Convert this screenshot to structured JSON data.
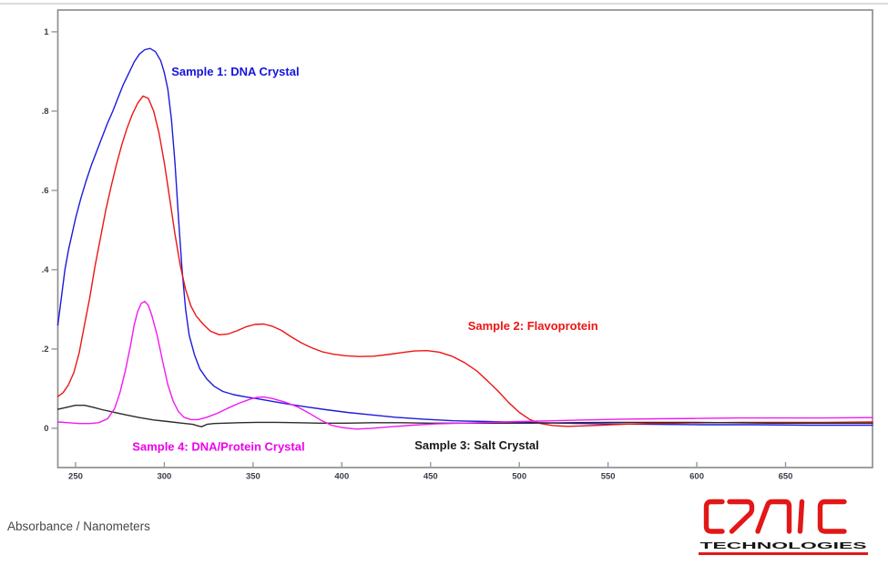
{
  "page": {
    "background": "#ffffff"
  },
  "footer": {
    "caption": "Absorbance / Nanometers"
  },
  "logo": {
    "brand": "CRAIC",
    "subtitle": "TECHNOLOGIES",
    "color": "#e31717",
    "subtitle_color": "#151515"
  },
  "chart_data": {
    "type": "line",
    "title": "",
    "xlabel": "Nanometers",
    "ylabel": "Absorbance",
    "xlim": [
      240,
      699
    ],
    "ylim": [
      -0.099,
      1.055
    ],
    "grid": false,
    "legend_position": "inline-annotations",
    "axis_color": "#8f8f8f",
    "tick_label_color": "#3a3f4a",
    "x_ticks": [
      250,
      300,
      350,
      400,
      450,
      500,
      550,
      600,
      650
    ],
    "y_ticks": [
      {
        "value": 0,
        "label": "0"
      },
      {
        "value": 0.2,
        "label": ".2"
      },
      {
        "value": 0.4,
        "label": ".4"
      },
      {
        "value": 0.6,
        "label": ".6"
      },
      {
        "value": 0.8,
        "label": ".8"
      },
      {
        "value": 1,
        "label": "1"
      }
    ],
    "series": [
      {
        "name": "Sample 1: DNA Crystal",
        "color": "#1b1bdd",
        "points": [
          [
            240,
            0.26
          ],
          [
            242,
            0.33
          ],
          [
            244,
            0.4
          ],
          [
            246,
            0.45
          ],
          [
            248,
            0.49
          ],
          [
            250,
            0.53
          ],
          [
            253,
            0.58
          ],
          [
            256,
            0.625
          ],
          [
            259,
            0.665
          ],
          [
            262,
            0.7
          ],
          [
            265,
            0.735
          ],
          [
            268,
            0.77
          ],
          [
            271,
            0.8
          ],
          [
            274,
            0.835
          ],
          [
            277,
            0.868
          ],
          [
            280,
            0.896
          ],
          [
            283,
            0.924
          ],
          [
            286,
            0.944
          ],
          [
            289,
            0.955
          ],
          [
            292,
            0.958
          ],
          [
            295,
            0.95
          ],
          [
            298,
            0.927
          ],
          [
            300,
            0.897
          ],
          [
            302,
            0.855
          ],
          [
            304,
            0.78
          ],
          [
            306,
            0.67
          ],
          [
            308,
            0.53
          ],
          [
            310,
            0.4
          ],
          [
            312,
            0.3
          ],
          [
            314,
            0.235
          ],
          [
            317,
            0.185
          ],
          [
            320,
            0.15
          ],
          [
            324,
            0.124
          ],
          [
            328,
            0.106
          ],
          [
            333,
            0.093
          ],
          [
            339,
            0.085
          ],
          [
            346,
            0.079
          ],
          [
            353,
            0.074
          ],
          [
            361,
            0.068
          ],
          [
            370,
            0.061
          ],
          [
            380,
            0.054
          ],
          [
            391,
            0.047
          ],
          [
            403,
            0.04
          ],
          [
            416,
            0.034
          ],
          [
            430,
            0.028
          ],
          [
            446,
            0.023
          ],
          [
            463,
            0.019
          ],
          [
            482,
            0.017
          ],
          [
            502,
            0.015
          ],
          [
            524,
            0.013
          ],
          [
            548,
            0.011
          ],
          [
            574,
            0.01
          ],
          [
            602,
            0.009
          ],
          [
            632,
            0.009
          ],
          [
            663,
            0.008
          ],
          [
            699,
            0.008
          ]
        ]
      },
      {
        "name": "Sample 2: Flavoprotein",
        "color": "#ee1414",
        "points": [
          [
            240,
            0.08
          ],
          [
            243,
            0.09
          ],
          [
            246,
            0.11
          ],
          [
            249,
            0.14
          ],
          [
            252,
            0.19
          ],
          [
            255,
            0.26
          ],
          [
            258,
            0.33
          ],
          [
            261,
            0.41
          ],
          [
            264,
            0.48
          ],
          [
            267,
            0.55
          ],
          [
            270,
            0.61
          ],
          [
            273,
            0.665
          ],
          [
            276,
            0.715
          ],
          [
            279,
            0.757
          ],
          [
            282,
            0.792
          ],
          [
            285,
            0.82
          ],
          [
            288,
            0.838
          ],
          [
            291,
            0.832
          ],
          [
            294,
            0.8
          ],
          [
            297,
            0.745
          ],
          [
            300,
            0.67
          ],
          [
            303,
            0.58
          ],
          [
            306,
            0.49
          ],
          [
            309,
            0.41
          ],
          [
            312,
            0.35
          ],
          [
            315,
            0.308
          ],
          [
            318,
            0.283
          ],
          [
            322,
            0.262
          ],
          [
            326,
            0.245
          ],
          [
            331,
            0.236
          ],
          [
            336,
            0.238
          ],
          [
            341,
            0.246
          ],
          [
            346,
            0.256
          ],
          [
            351,
            0.262
          ],
          [
            356,
            0.263
          ],
          [
            361,
            0.257
          ],
          [
            366,
            0.247
          ],
          [
            371,
            0.232
          ],
          [
            377,
            0.216
          ],
          [
            383,
            0.203
          ],
          [
            389,
            0.193
          ],
          [
            395,
            0.187
          ],
          [
            402,
            0.183
          ],
          [
            410,
            0.181
          ],
          [
            418,
            0.182
          ],
          [
            426,
            0.186
          ],
          [
            434,
            0.191
          ],
          [
            441,
            0.195
          ],
          [
            448,
            0.196
          ],
          [
            455,
            0.192
          ],
          [
            462,
            0.182
          ],
          [
            469,
            0.166
          ],
          [
            476,
            0.145
          ],
          [
            482,
            0.12
          ],
          [
            488,
            0.094
          ],
          [
            494,
            0.065
          ],
          [
            500,
            0.04
          ],
          [
            506,
            0.022
          ],
          [
            512,
            0.012
          ],
          [
            519,
            0.007
          ],
          [
            527,
            0.005
          ],
          [
            536,
            0.006
          ],
          [
            546,
            0.008
          ],
          [
            558,
            0.01
          ],
          [
            572,
            0.012
          ],
          [
            588,
            0.013
          ],
          [
            605,
            0.014
          ],
          [
            625,
            0.015
          ],
          [
            648,
            0.015
          ],
          [
            672,
            0.015
          ],
          [
            699,
            0.016
          ]
        ]
      },
      {
        "name": "Sample 3: Salt Crystal",
        "color": "#2b2b2b",
        "points": [
          [
            240,
            0.048
          ],
          [
            245,
            0.053
          ],
          [
            250,
            0.058
          ],
          [
            255,
            0.058
          ],
          [
            260,
            0.053
          ],
          [
            265,
            0.047
          ],
          [
            271,
            0.041
          ],
          [
            278,
            0.034
          ],
          [
            286,
            0.027
          ],
          [
            294,
            0.021
          ],
          [
            302,
            0.017
          ],
          [
            310,
            0.013
          ],
          [
            316,
            0.01
          ],
          [
            319,
            0.006
          ],
          [
            321,
            0.004
          ],
          [
            324,
            0.01
          ],
          [
            328,
            0.012
          ],
          [
            334,
            0.013
          ],
          [
            342,
            0.014
          ],
          [
            352,
            0.015
          ],
          [
            363,
            0.015
          ],
          [
            375,
            0.014
          ],
          [
            388,
            0.013
          ],
          [
            402,
            0.013
          ],
          [
            417,
            0.014
          ],
          [
            433,
            0.014
          ],
          [
            450,
            0.013
          ],
          [
            468,
            0.013
          ],
          [
            487,
            0.013
          ],
          [
            507,
            0.013
          ],
          [
            528,
            0.014
          ],
          [
            550,
            0.015
          ],
          [
            573,
            0.015
          ],
          [
            596,
            0.015
          ],
          [
            619,
            0.014
          ],
          [
            642,
            0.013
          ],
          [
            665,
            0.013
          ],
          [
            699,
            0.013
          ]
        ]
      },
      {
        "name": "Sample 4: DNA/Protein Crystal",
        "color": "#f318f3",
        "points": [
          [
            240,
            0.016
          ],
          [
            246,
            0.014
          ],
          [
            252,
            0.012
          ],
          [
            258,
            0.012
          ],
          [
            263,
            0.014
          ],
          [
            268,
            0.024
          ],
          [
            272,
            0.05
          ],
          [
            275,
            0.09
          ],
          [
            278,
            0.145
          ],
          [
            281,
            0.21
          ],
          [
            283,
            0.26
          ],
          [
            285,
            0.295
          ],
          [
            287,
            0.315
          ],
          [
            289,
            0.32
          ],
          [
            291,
            0.31
          ],
          [
            293,
            0.284
          ],
          [
            296,
            0.234
          ],
          [
            299,
            0.17
          ],
          [
            302,
            0.11
          ],
          [
            305,
            0.068
          ],
          [
            308,
            0.042
          ],
          [
            311,
            0.028
          ],
          [
            315,
            0.022
          ],
          [
            319,
            0.022
          ],
          [
            324,
            0.028
          ],
          [
            330,
            0.038
          ],
          [
            336,
            0.051
          ],
          [
            342,
            0.063
          ],
          [
            348,
            0.073
          ],
          [
            352,
            0.078
          ],
          [
            356,
            0.079
          ],
          [
            361,
            0.075
          ],
          [
            368,
            0.066
          ],
          [
            375,
            0.054
          ],
          [
            382,
            0.037
          ],
          [
            388,
            0.021
          ],
          [
            394,
            0.008
          ],
          [
            400,
            0.002
          ],
          [
            408,
            -0.002
          ],
          [
            417,
            0
          ],
          [
            428,
            0.004
          ],
          [
            440,
            0.008
          ],
          [
            453,
            0.011
          ],
          [
            468,
            0.013
          ],
          [
            484,
            0.015
          ],
          [
            500,
            0.017
          ],
          [
            518,
            0.019
          ],
          [
            537,
            0.021
          ],
          [
            557,
            0.023
          ],
          [
            578,
            0.024
          ],
          [
            600,
            0.025
          ],
          [
            624,
            0.026
          ],
          [
            648,
            0.026
          ],
          [
            672,
            0.026
          ],
          [
            699,
            0.027
          ]
        ]
      }
    ],
    "annotations": [
      {
        "text": "Sample 1: DNA Crystal",
        "color": "#1414dd",
        "x": 304,
        "y": 0.9
      },
      {
        "text": "Sample 2: Flavoprotein",
        "color": "#ee1414",
        "x": 471,
        "y": 0.258
      },
      {
        "text": "Sample 3: Salt Crystal",
        "color": "#1a1a1a",
        "x": 441,
        "y": -0.043
      },
      {
        "text": "Sample 4: DNA/Protein Crystal",
        "color": "#ee00ee",
        "x": 282,
        "y": -0.046
      }
    ]
  }
}
